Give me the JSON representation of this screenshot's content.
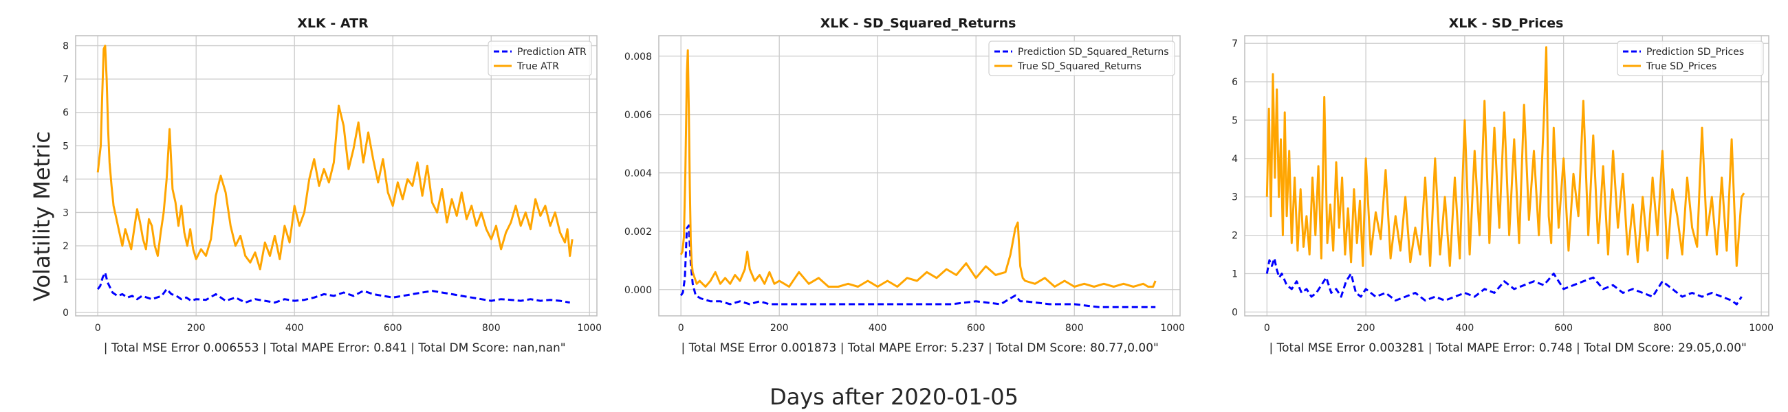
{
  "figure": {
    "supylabel": "Volatility Metric",
    "supxlabel": "Days after 2020-01-05"
  },
  "colors": {
    "prediction": "#0000ff",
    "truth": "#ffa500"
  },
  "chart_data": [
    {
      "type": "line",
      "title": "XLK - ATR",
      "xlabel": " | Total MSE Error 0.006553 | Total MAPE Error: 0.841 | Total DM Score: nan,nan\"",
      "ylabel": "Volatility Metric",
      "xlim": [
        -45,
        1015
      ],
      "ylim": [
        -0.1,
        8.3
      ],
      "xticks": [
        0,
        200,
        400,
        600,
        800,
        1000
      ],
      "xtick_labels": [
        "0",
        "200",
        "400",
        "600",
        "800",
        "1000"
      ],
      "yticks": [
        0,
        1,
        2,
        3,
        4,
        5,
        6,
        7,
        8
      ],
      "ytick_labels": [
        "0",
        "1",
        "2",
        "3",
        "4",
        "5",
        "6",
        "7",
        "8"
      ],
      "grid": true,
      "legend_position": "top-right",
      "series": [
        {
          "name": "Prediction ATR",
          "style": "dashed",
          "x": [
            0,
            5,
            10,
            15,
            20,
            25,
            30,
            40,
            50,
            60,
            70,
            80,
            90,
            100,
            110,
            120,
            130,
            140,
            150,
            160,
            170,
            180,
            190,
            200,
            220,
            240,
            260,
            280,
            300,
            320,
            340,
            360,
            380,
            400,
            420,
            440,
            460,
            480,
            500,
            520,
            540,
            560,
            580,
            600,
            620,
            640,
            660,
            680,
            700,
            720,
            740,
            760,
            780,
            800,
            820,
            840,
            860,
            880,
            900,
            920,
            940,
            960
          ],
          "y": [
            0.7,
            0.8,
            1.05,
            1.2,
            0.9,
            0.75,
            0.6,
            0.5,
            0.55,
            0.45,
            0.5,
            0.4,
            0.5,
            0.45,
            0.4,
            0.45,
            0.5,
            0.7,
            0.55,
            0.5,
            0.4,
            0.45,
            0.35,
            0.4,
            0.38,
            0.55,
            0.35,
            0.45,
            0.3,
            0.4,
            0.35,
            0.3,
            0.4,
            0.35,
            0.38,
            0.45,
            0.55,
            0.5,
            0.6,
            0.5,
            0.65,
            0.55,
            0.5,
            0.45,
            0.5,
            0.55,
            0.6,
            0.65,
            0.6,
            0.55,
            0.5,
            0.45,
            0.4,
            0.35,
            0.4,
            0.38,
            0.35,
            0.4,
            0.35,
            0.38,
            0.35,
            0.3
          ]
        },
        {
          "name": "True ATR",
          "style": "solid",
          "x": [
            0,
            3,
            6,
            9,
            12,
            15,
            18,
            21,
            24,
            28,
            32,
            38,
            44,
            50,
            56,
            62,
            68,
            74,
            80,
            86,
            92,
            98,
            104,
            110,
            116,
            122,
            128,
            134,
            140,
            146,
            152,
            158,
            164,
            170,
            176,
            182,
            188,
            194,
            200,
            210,
            220,
            230,
            240,
            250,
            260,
            270,
            280,
            290,
            300,
            310,
            320,
            330,
            340,
            350,
            360,
            370,
            380,
            390,
            400,
            410,
            420,
            430,
            440,
            450,
            460,
            470,
            480,
            490,
            500,
            510,
            520,
            530,
            540,
            550,
            560,
            570,
            580,
            590,
            600,
            610,
            620,
            630,
            640,
            650,
            660,
            670,
            680,
            690,
            700,
            710,
            720,
            730,
            740,
            750,
            760,
            770,
            780,
            790,
            800,
            810,
            820,
            830,
            840,
            850,
            860,
            870,
            880,
            890,
            900,
            910,
            920,
            930,
            940,
            950,
            955,
            960,
            965
          ],
          "y": [
            4.2,
            4.6,
            5.0,
            6.5,
            7.9,
            8.0,
            7.0,
            5.5,
            4.5,
            3.8,
            3.2,
            2.8,
            2.4,
            2.0,
            2.5,
            2.2,
            1.9,
            2.5,
            3.1,
            2.7,
            2.2,
            1.9,
            2.8,
            2.6,
            2.0,
            1.7,
            2.4,
            3.0,
            4.0,
            5.5,
            3.7,
            3.3,
            2.6,
            3.2,
            2.4,
            2.0,
            2.5,
            1.9,
            1.6,
            1.9,
            1.7,
            2.2,
            3.5,
            4.1,
            3.6,
            2.6,
            2.0,
            2.3,
            1.7,
            1.5,
            1.8,
            1.3,
            2.1,
            1.7,
            2.3,
            1.6,
            2.6,
            2.1,
            3.2,
            2.6,
            3.0,
            4.0,
            4.6,
            3.8,
            4.3,
            3.9,
            4.5,
            6.2,
            5.6,
            4.3,
            4.9,
            5.7,
            4.5,
            5.4,
            4.6,
            3.9,
            4.6,
            3.6,
            3.2,
            3.9,
            3.4,
            4.0,
            3.8,
            4.5,
            3.5,
            4.4,
            3.3,
            3.0,
            3.7,
            2.7,
            3.4,
            2.9,
            3.6,
            2.8,
            3.2,
            2.6,
            3.0,
            2.5,
            2.2,
            2.6,
            1.9,
            2.4,
            2.7,
            3.2,
            2.6,
            3.0,
            2.5,
            3.4,
            2.9,
            3.2,
            2.6,
            3.0,
            2.4,
            2.1,
            2.5,
            1.7,
            2.2
          ]
        }
      ]
    },
    {
      "type": "line",
      "title": "XLK - SD_Squared_Returns",
      "xlabel": " | Total MSE Error 0.001873 | Total MAPE Error: 5.237 | Total DM Score: 80.77,0.00\"",
      "xlim": [
        -45,
        1015
      ],
      "ylim": [
        -0.0009,
        0.0087
      ],
      "xticks": [
        0,
        200,
        400,
        600,
        800,
        1000
      ],
      "xtick_labels": [
        "0",
        "200",
        "400",
        "600",
        "800",
        "1000"
      ],
      "yticks": [
        0,
        0.002,
        0.004,
        0.006,
        0.008
      ],
      "ytick_labels": [
        "0.000",
        "0.002",
        "0.004",
        "0.006",
        "0.008"
      ],
      "grid": true,
      "legend_position": "top-right",
      "series": [
        {
          "name": "Prediction SD_Squared_Returns",
          "style": "dashed",
          "x": [
            0,
            4,
            8,
            12,
            16,
            20,
            24,
            30,
            40,
            60,
            80,
            100,
            120,
            140,
            160,
            180,
            200,
            250,
            300,
            350,
            400,
            450,
            500,
            550,
            600,
            650,
            680,
            690,
            700,
            750,
            800,
            850,
            900,
            950,
            965
          ],
          "y": [
            -0.0002,
            -0.0001,
            0.0004,
            0.0021,
            0.0022,
            0.0009,
            0.0002,
            -0.0002,
            -0.0003,
            -0.0004,
            -0.0004,
            -0.0005,
            -0.0004,
            -0.0005,
            -0.0004,
            -0.0005,
            -0.0005,
            -0.0005,
            -0.0005,
            -0.0005,
            -0.0005,
            -0.0005,
            -0.0005,
            -0.0005,
            -0.0004,
            -0.0005,
            -0.0002,
            -0.0004,
            -0.0004,
            -0.0005,
            -0.0005,
            -0.0006,
            -0.0006,
            -0.0006,
            -0.0006
          ]
        },
        {
          "name": "True SD_Squared_Returns",
          "style": "solid",
          "x": [
            0,
            3,
            6,
            9,
            12,
            14,
            16,
            18,
            20,
            22,
            24,
            28,
            32,
            38,
            44,
            50,
            60,
            70,
            80,
            90,
            100,
            110,
            120,
            130,
            135,
            140,
            150,
            160,
            170,
            180,
            190,
            200,
            220,
            240,
            260,
            280,
            300,
            320,
            340,
            360,
            380,
            400,
            420,
            440,
            460,
            480,
            500,
            520,
            540,
            560,
            580,
            600,
            620,
            640,
            660,
            670,
            680,
            685,
            690,
            695,
            700,
            720,
            740,
            760,
            780,
            800,
            820,
            840,
            860,
            880,
            900,
            920,
            940,
            950,
            960,
            965
          ],
          "y": [
            0.0012,
            0.0013,
            0.0018,
            0.004,
            0.0074,
            0.0082,
            0.0062,
            0.0035,
            0.0016,
            0.0009,
            0.0006,
            0.0004,
            0.0002,
            0.0003,
            0.0002,
            0.0001,
            0.0003,
            0.0006,
            0.0002,
            0.0004,
            0.0002,
            0.0005,
            0.0003,
            0.0007,
            0.0013,
            0.0007,
            0.0003,
            0.0005,
            0.0002,
            0.0006,
            0.0002,
            0.0003,
            0.0001,
            0.0006,
            0.0002,
            0.0004,
            0.0001,
            0.0001,
            0.0002,
            0.0001,
            0.0003,
            0.0001,
            0.0003,
            0.0001,
            0.0004,
            0.0003,
            0.0006,
            0.0004,
            0.0007,
            0.0005,
            0.0009,
            0.0004,
            0.0008,
            0.0005,
            0.0006,
            0.0012,
            0.0021,
            0.0023,
            0.0008,
            0.0004,
            0.0003,
            0.0002,
            0.0004,
            0.0001,
            0.0003,
            0.0001,
            0.0002,
            0.0001,
            0.0002,
            0.0001,
            0.0002,
            0.0001,
            0.0002,
            0.0001,
            0.0001,
            0.0003
          ]
        }
      ]
    },
    {
      "type": "line",
      "title": "XLK - SD_Prices",
      "xlabel": " | Total MSE Error 0.003281 | Total MAPE Error: 0.748 | Total DM Score: 29.05,0.00\"",
      "xlim": [
        -45,
        1015
      ],
      "ylim": [
        -0.1,
        7.2
      ],
      "xticks": [
        0,
        200,
        400,
        600,
        800,
        1000
      ],
      "xtick_labels": [
        "0",
        "200",
        "400",
        "600",
        "800",
        "1000"
      ],
      "yticks": [
        0,
        1,
        2,
        3,
        4,
        5,
        6,
        7
      ],
      "ytick_labels": [
        "0",
        "1",
        "2",
        "3",
        "4",
        "5",
        "6",
        "7"
      ],
      "grid": true,
      "legend_position": "top-right",
      "series": [
        {
          "name": "Prediction SD_Prices",
          "style": "dashed",
          "x": [
            0,
            5,
            10,
            15,
            20,
            25,
            30,
            40,
            50,
            60,
            70,
            80,
            90,
            100,
            110,
            120,
            130,
            140,
            150,
            160,
            170,
            180,
            190,
            200,
            220,
            240,
            260,
            280,
            300,
            320,
            340,
            360,
            380,
            400,
            420,
            440,
            460,
            480,
            500,
            520,
            540,
            560,
            580,
            600,
            620,
            640,
            660,
            680,
            700,
            720,
            740,
            760,
            780,
            800,
            820,
            840,
            860,
            880,
            900,
            920,
            940,
            950,
            960
          ],
          "y": [
            1.0,
            1.35,
            1.2,
            1.4,
            1.1,
            0.9,
            1.0,
            0.7,
            0.6,
            0.8,
            0.5,
            0.6,
            0.4,
            0.5,
            0.7,
            0.9,
            0.5,
            0.6,
            0.4,
            0.8,
            1.0,
            0.5,
            0.4,
            0.6,
            0.4,
            0.5,
            0.3,
            0.4,
            0.5,
            0.3,
            0.4,
            0.3,
            0.4,
            0.5,
            0.4,
            0.6,
            0.5,
            0.8,
            0.6,
            0.7,
            0.8,
            0.7,
            1.0,
            0.6,
            0.7,
            0.8,
            0.9,
            0.6,
            0.7,
            0.5,
            0.6,
            0.5,
            0.4,
            0.8,
            0.6,
            0.4,
            0.5,
            0.4,
            0.5,
            0.4,
            0.3,
            0.2,
            0.4
          ]
        },
        {
          "name": "True SD_Prices",
          "style": "solid",
          "x": [
            0,
            4,
            8,
            12,
            16,
            20,
            24,
            28,
            32,
            36,
            40,
            45,
            50,
            56,
            62,
            68,
            74,
            80,
            86,
            92,
            98,
            104,
            110,
            116,
            122,
            128,
            134,
            140,
            146,
            152,
            158,
            164,
            170,
            176,
            182,
            188,
            194,
            200,
            210,
            220,
            230,
            240,
            250,
            260,
            270,
            280,
            290,
            300,
            310,
            320,
            330,
            340,
            350,
            360,
            370,
            380,
            390,
            400,
            410,
            420,
            430,
            440,
            450,
            460,
            470,
            480,
            490,
            500,
            510,
            520,
            530,
            540,
            550,
            560,
            565,
            570,
            575,
            580,
            590,
            600,
            610,
            620,
            630,
            640,
            650,
            660,
            670,
            680,
            690,
            700,
            710,
            720,
            730,
            740,
            750,
            760,
            770,
            780,
            790,
            800,
            810,
            820,
            830,
            840,
            850,
            860,
            870,
            880,
            890,
            900,
            910,
            920,
            930,
            940,
            950,
            960,
            965
          ],
          "y": [
            3.0,
            5.3,
            2.5,
            6.2,
            3.5,
            5.8,
            3.0,
            4.5,
            2.0,
            5.2,
            2.5,
            4.2,
            1.8,
            3.5,
            1.6,
            3.2,
            1.7,
            2.5,
            1.5,
            3.5,
            2.0,
            3.8,
            1.4,
            5.6,
            1.8,
            2.8,
            1.6,
            3.9,
            2.2,
            3.5,
            1.5,
            2.7,
            1.3,
            3.2,
            1.8,
            2.9,
            1.2,
            4.0,
            1.5,
            2.6,
            1.9,
            3.7,
            1.4,
            2.5,
            1.6,
            3.0,
            1.3,
            2.2,
            1.5,
            3.5,
            1.2,
            4.0,
            1.5,
            3.0,
            1.2,
            3.5,
            1.4,
            5.0,
            1.5,
            4.2,
            2.0,
            5.5,
            1.8,
            4.8,
            2.2,
            5.2,
            2.0,
            4.5,
            1.8,
            5.4,
            2.4,
            4.2,
            2.0,
            5.0,
            6.9,
            2.5,
            1.8,
            4.8,
            2.2,
            4.0,
            1.6,
            3.6,
            2.5,
            5.5,
            2.0,
            4.6,
            1.8,
            3.8,
            1.5,
            4.2,
            2.2,
            3.6,
            1.5,
            2.8,
            1.3,
            3.0,
            1.6,
            3.5,
            2.0,
            4.2,
            1.4,
            3.2,
            2.5,
            1.5,
            3.5,
            2.2,
            1.7,
            4.8,
            2.0,
            3.0,
            1.5,
            3.5,
            1.6,
            4.5,
            1.2,
            3.0,
            3.1
          ]
        }
      ]
    }
  ]
}
